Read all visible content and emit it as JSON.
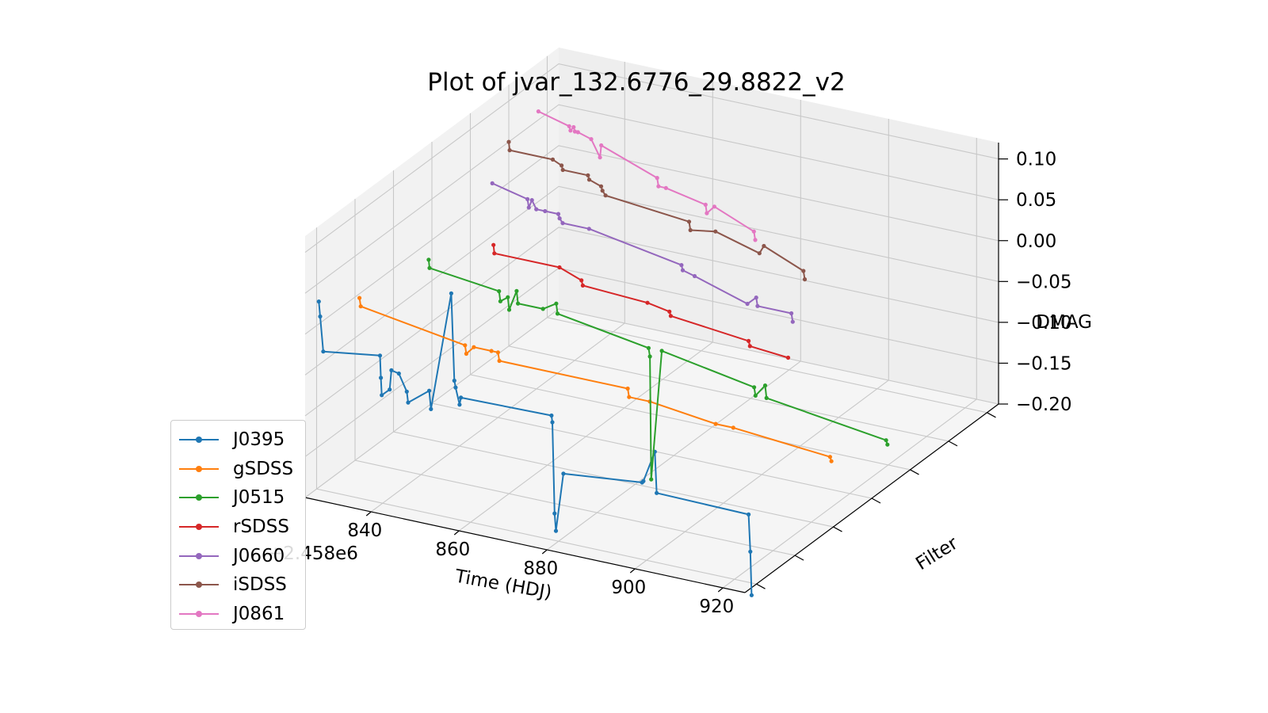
{
  "chart_data": {
    "type": "line3d",
    "title": "Plot of jvar_132.6776_29.8822_v2",
    "xlabel": "Time (HDJ)",
    "ylabel": "Filter",
    "zlabel": "DMAG",
    "x_offset_label": "+2.458e6",
    "xlim": [
      825,
      925
    ],
    "ylim": [
      -0.3,
      6.3
    ],
    "zlim": [
      -0.2,
      0.12
    ],
    "x_ticks": [
      "840",
      "860",
      "880",
      "900",
      "920"
    ],
    "z_ticks": [
      "0.10",
      "0.05",
      "0.00",
      "−0.05",
      "−0.10",
      "−0.15",
      "−0.20"
    ],
    "grid": true,
    "legend_position": "lower-left",
    "series": [
      {
        "name": "J0395",
        "color": "#1f77b4",
        "filter_index": 0,
        "x": [
          825.5,
          825.8,
          826.5,
          839.4,
          839.6,
          839.8,
          841.6,
          842.0,
          843.7,
          845.5,
          845.8,
          850.6,
          851.0,
          855.6,
          856.3,
          856.6,
          857.5,
          857.8,
          878.4,
          878.6,
          879.1,
          879.4,
          881.1,
          899.0,
          899.3,
          901.9,
          902.3,
          923.2,
          923.6,
          923.9
        ],
        "y": [
          0,
          0,
          0,
          0,
          0,
          0,
          0,
          0,
          0,
          0,
          0,
          0,
          0,
          0,
          0,
          0,
          0,
          0,
          0,
          0,
          0,
          0,
          0,
          0,
          0,
          0,
          0,
          0,
          0,
          0
        ],
        "z": [
          0.03,
          0.012,
          -0.03,
          -0.02,
          -0.047,
          -0.068,
          -0.059,
          -0.035,
          -0.037,
          -0.057,
          -0.07,
          -0.05,
          -0.072,
          0.075,
          -0.031,
          -0.039,
          -0.059,
          -0.05,
          -0.048,
          -0.056,
          -0.167,
          -0.188,
          -0.116,
          -0.106,
          -0.104,
          -0.065,
          -0.115,
          -0.117,
          -0.162,
          -0.215
        ]
      },
      {
        "name": "gSDSS",
        "color": "#ff7f0e",
        "filter_index": 1,
        "x": [
          826.0,
          826.3,
          850.0,
          850.3,
          852.0,
          856.0,
          857.5,
          857.8,
          887.0,
          887.3,
          892.0,
          907.0,
          911.0,
          933.0,
          933.3
        ],
        "y": [
          1,
          1,
          1,
          1,
          1,
          1,
          1,
          1,
          1,
          1,
          1,
          1,
          1,
          1,
          1
        ],
        "z": [
          0.0,
          -0.01,
          -0.03,
          -0.04,
          -0.03,
          -0.03,
          -0.03,
          -0.04,
          -0.04,
          -0.05,
          -0.05,
          -0.06,
          -0.06,
          -0.07,
          -0.075
        ]
      },
      {
        "name": "J0515",
        "color": "#2ca02c",
        "filter_index": 2,
        "x": [
          833.0,
          833.2,
          849.0,
          849.3,
          851.0,
          851.3,
          853.0,
          853.3,
          859.0,
          862.0,
          862.3,
          883.0,
          883.3,
          883.6,
          886.0,
          907.0,
          907.3,
          909.5,
          909.8,
          937.0,
          937.3
        ],
        "y": [
          2,
          2,
          2,
          2,
          2,
          2,
          2,
          2,
          2,
          2,
          2,
          2,
          2,
          2,
          2,
          2,
          2,
          2,
          2,
          2,
          2
        ],
        "z": [
          0.02,
          0.01,
          0.0,
          -0.012,
          -0.005,
          -0.02,
          0.005,
          -0.01,
          -0.01,
          0.0,
          -0.012,
          -0.03,
          -0.04,
          -0.19,
          -0.03,
          -0.05,
          -0.06,
          -0.045,
          -0.06,
          -0.08,
          -0.085
        ]
      },
      {
        "name": "rSDSS",
        "color": "#d62728",
        "filter_index": 3,
        "x": [
          839.0,
          839.2,
          854.0,
          859.0,
          859.3,
          874.0,
          879.0,
          879.3,
          897.0,
          897.3,
          906.0
        ],
        "y": [
          3,
          3,
          3,
          3,
          3,
          3,
          3,
          3,
          3,
          3,
          3
        ],
        "z": [
          0.01,
          0.0,
          0.0,
          -0.01,
          -0.016,
          -0.02,
          -0.025,
          -0.03,
          -0.04,
          -0.046,
          -0.05
        ]
      },
      {
        "name": "J0660",
        "color": "#9467bd",
        "filter_index": 4,
        "x": [
          830.0,
          838.0,
          838.3,
          839.0,
          840.0,
          842.0,
          845.0,
          845.3,
          846.0,
          852.0,
          873.0,
          873.3,
          876.0,
          888.0,
          890.0,
          890.3,
          898.0,
          898.3
        ],
        "y": [
          4,
          4,
          4,
          4,
          4,
          4,
          4,
          4,
          4,
          4,
          4,
          4,
          4,
          4,
          4,
          4,
          4,
          4
        ],
        "z": [
          0.04,
          0.03,
          0.02,
          0.03,
          0.02,
          0.02,
          0.02,
          0.015,
          0.01,
          0.01,
          -0.01,
          -0.016,
          -0.02,
          -0.04,
          -0.03,
          -0.04,
          -0.04,
          -0.05
        ]
      },
      {
        "name": "iSDSS",
        "color": "#8c564b",
        "filter_index": 5,
        "x": [
          825.0,
          825.2,
          835.0,
          837.0,
          837.3,
          843.0,
          843.3,
          846.0,
          846.3,
          847.0,
          866.0,
          866.3,
          872.0,
          882.0,
          883.0,
          892.0,
          892.3
        ],
        "y": [
          5,
          5,
          5,
          5,
          5,
          5,
          5,
          5,
          5,
          5,
          5,
          5,
          5,
          5,
          5,
          5,
          5
        ],
        "z": [
          0.05,
          0.04,
          0.04,
          0.035,
          0.03,
          0.03,
          0.025,
          0.02,
          0.015,
          0.01,
          0.0,
          -0.01,
          -0.005,
          -0.02,
          -0.01,
          -0.03,
          -0.04
        ]
      },
      {
        "name": "J0861",
        "color": "#e377c2",
        "filter_index": 6,
        "x": [
          823.0,
          830.0,
          830.3,
          831.0,
          831.3,
          832.0,
          835.0,
          837.0,
          837.3,
          850.0,
          850.3,
          852.0,
          861.0,
          861.3,
          863.0,
          872.0,
          872.3
        ],
        "y": [
          6,
          6,
          6,
          6,
          6,
          6,
          6,
          6,
          6,
          6,
          6,
          6,
          6,
          6,
          6,
          6,
          6
        ],
        "z": [
          0.05,
          0.04,
          0.035,
          0.04,
          0.035,
          0.035,
          0.03,
          0.01,
          0.025,
          0.0,
          -0.01,
          -0.01,
          -0.02,
          -0.03,
          -0.02,
          -0.04,
          -0.05
        ]
      }
    ]
  }
}
